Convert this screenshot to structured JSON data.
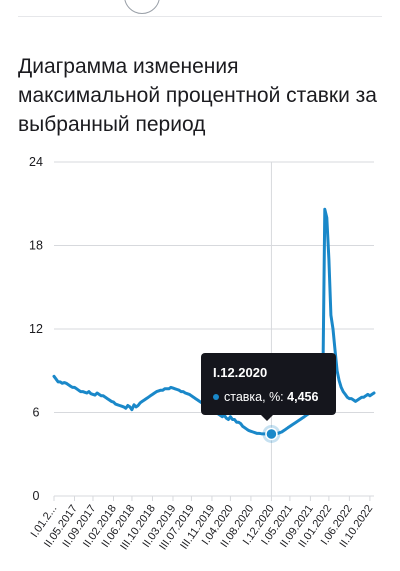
{
  "page": {
    "title": "Диаграмма изменения максимальной процентной ставки за выбранный период"
  },
  "colors": {
    "line": "#1a88c9",
    "grid": "#d7d9dd",
    "axis_text": "#1b1b1f",
    "tooltip_bg": "#15161d",
    "tooltip_dot": "#1a88c9"
  },
  "tooltip": {
    "date": "I.12.2020",
    "series_label": "ставка, %:",
    "value": "4,456"
  },
  "chart_data": {
    "type": "line",
    "title": "",
    "xlabel": "",
    "ylabel": "",
    "ylim": [
      0,
      24
    ],
    "yticks": [
      "0",
      "6",
      "12",
      "18",
      "24"
    ],
    "ytick_values": [
      0,
      6,
      12,
      18,
      24
    ],
    "xtick_labels": [
      "I.01.2...",
      "II.05.2017",
      "II.09.2017",
      "II.02.2018",
      "II.06.2018",
      "III.10.2018",
      "II.03.2019",
      "III.07.2019",
      "III.11.2019",
      "I.04.2020",
      "II.08.2020",
      "I.12.2020",
      "I.05.2021",
      "II.09.2021",
      "II.01.2022",
      "I.06.2022",
      "II.10.2022"
    ],
    "xtick_idx": [
      0,
      10,
      19,
      29,
      38,
      48,
      58,
      67,
      77,
      86,
      96,
      106,
      115,
      125,
      134,
      144,
      154
    ],
    "highlight_index": 106,
    "highlight_value": 4.456,
    "grid": true,
    "legend": "none",
    "series": [
      {
        "values": [
          8.6,
          8.4,
          8.2,
          8.2,
          8.1,
          8.15,
          8.1,
          8.0,
          7.9,
          7.8,
          7.8,
          7.7,
          7.6,
          7.5,
          7.5,
          7.45,
          7.4,
          7.5,
          7.35,
          7.3,
          7.25,
          7.4,
          7.3,
          7.2,
          7.2,
          7.1,
          7.0,
          6.9,
          6.8,
          6.75,
          6.6,
          6.55,
          6.5,
          6.45,
          6.4,
          6.3,
          6.5,
          6.4,
          6.2,
          6.55,
          6.4,
          6.5,
          6.7,
          6.8,
          6.9,
          7.0,
          7.1,
          7.2,
          7.3,
          7.4,
          7.5,
          7.55,
          7.6,
          7.6,
          7.7,
          7.7,
          7.7,
          7.8,
          7.75,
          7.7,
          7.65,
          7.6,
          7.5,
          7.5,
          7.4,
          7.35,
          7.3,
          7.2,
          7.1,
          7.0,
          6.9,
          6.8,
          6.7,
          6.6,
          6.5,
          6.4,
          6.3,
          6.2,
          6.1,
          6.0,
          5.9,
          5.8,
          5.7,
          5.8,
          5.6,
          5.5,
          5.7,
          5.5,
          5.5,
          5.3,
          5.3,
          5.2,
          5.0,
          4.9,
          4.8,
          4.7,
          4.65,
          4.6,
          4.55,
          4.5,
          4.5,
          4.48,
          4.46,
          4.46,
          4.45,
          4.45,
          4.456,
          4.46,
          4.48,
          4.5,
          4.55,
          4.6,
          4.7,
          4.8,
          4.9,
          5.0,
          5.1,
          5.2,
          5.3,
          5.4,
          5.5,
          5.6,
          5.7,
          5.8,
          5.9,
          6.0,
          6.2,
          6.4,
          6.7,
          7.0,
          7.4,
          7.2,
          20.6,
          20.0,
          17.0,
          13.0,
          12.0,
          10.5,
          9.0,
          8.3,
          7.8,
          7.5,
          7.3,
          7.1,
          7.0,
          7.0,
          6.9,
          6.8,
          6.9,
          7.0,
          7.1,
          7.1,
          7.2,
          7.3,
          7.2,
          7.3,
          7.4
        ]
      }
    ]
  }
}
